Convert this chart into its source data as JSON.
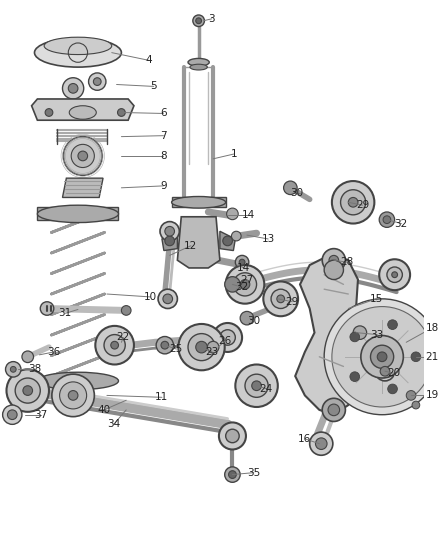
{
  "bg_color": "#ffffff",
  "fig_width": 4.38,
  "fig_height": 5.33,
  "dpi": 100,
  "line_color": "#444444",
  "part_color": "#888888",
  "part_dark": "#555555",
  "part_light": "#cccccc",
  "leader_color": "#777777",
  "label_color": "#222222",
  "label_fs": 7.5
}
